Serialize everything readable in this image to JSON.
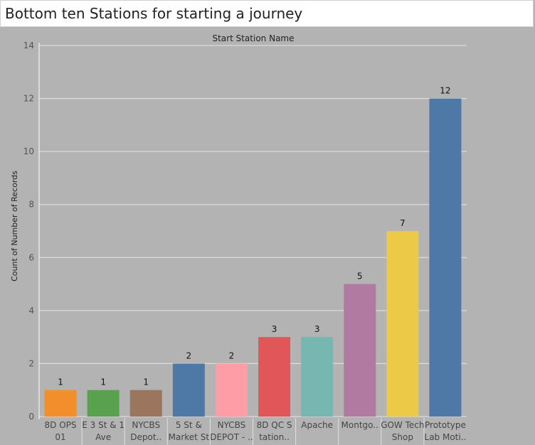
{
  "page": {
    "title": "Bottom ten Stations for starting a journey",
    "background": "#b3b3b3"
  },
  "chart_data": {
    "type": "bar",
    "title": "",
    "header": "Start Station Name",
    "xlabel": "",
    "ylabel": "Count of Number of Records",
    "ylim": [
      0,
      14
    ],
    "yticks": [
      0,
      2,
      4,
      6,
      8,
      10,
      12,
      14
    ],
    "grid": true,
    "categories": [
      [
        "8D OPS",
        "01"
      ],
      [
        "E 3 St & 1",
        "Ave"
      ],
      [
        "NYCBS",
        "Depot.."
      ],
      [
        "5 St &",
        "Market St"
      ],
      [
        "NYCBS",
        "DEPOT - .."
      ],
      [
        "8D QC S",
        "tation.."
      ],
      [
        "Apache",
        ""
      ],
      [
        "Montgo..",
        ""
      ],
      [
        "GOW Tech",
        "Shop"
      ],
      [
        "Prototype",
        "Lab Moti.."
      ]
    ],
    "values": [
      1,
      1,
      1,
      2,
      2,
      3,
      3,
      5,
      7,
      12
    ],
    "colors": [
      "#f28e2b",
      "#59a14f",
      "#9c755f",
      "#4e79a7",
      "#ff9da7",
      "#e15759",
      "#76b7b2",
      "#b07aa1",
      "#edc948",
      "#4e79a7"
    ]
  }
}
